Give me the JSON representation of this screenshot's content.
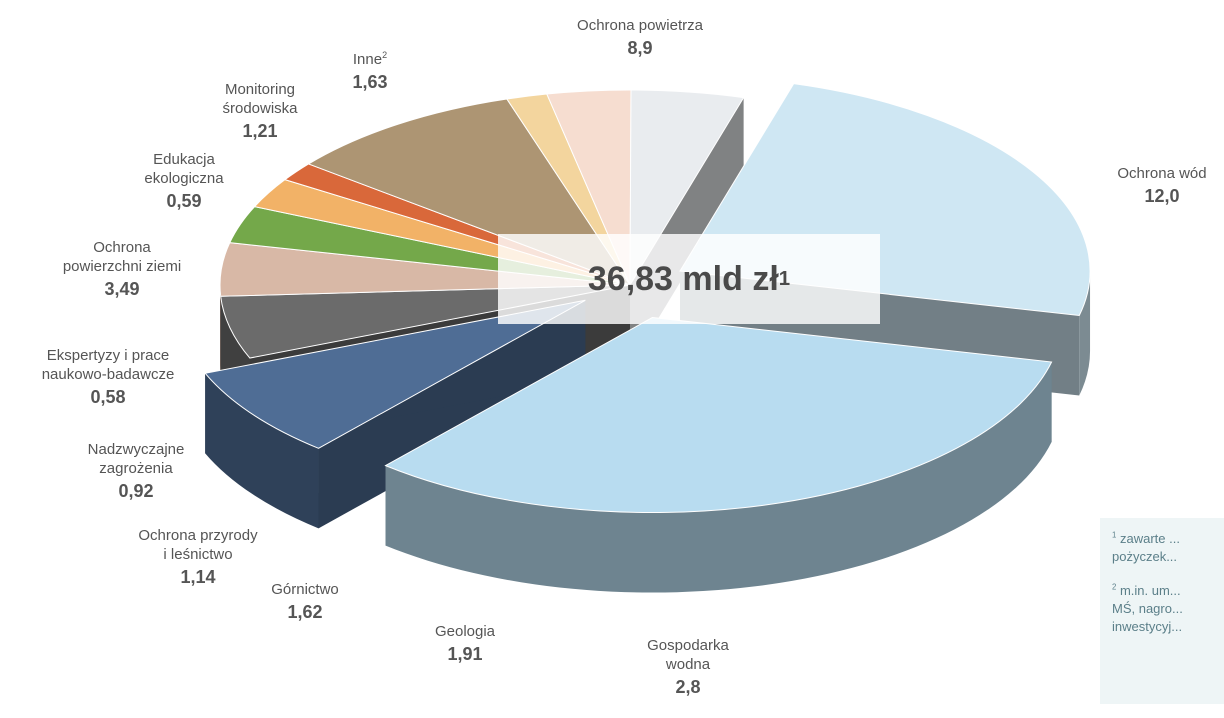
{
  "chart_data": {
    "type": "pie",
    "title": "",
    "total_value": "36,83",
    "total_unit": "mld zł",
    "total_sup": "1",
    "series": [
      {
        "key": "powietrza",
        "label": "Ochrona powietrza",
        "value": 8.9,
        "value_text": "8,9",
        "color": "#cfe7f3"
      },
      {
        "key": "wod",
        "label": "Ochrona wód",
        "value": 12.0,
        "value_text": "12,0",
        "color": "#b8dcf0"
      },
      {
        "key": "gospodarka",
        "label": "Gospodarka wodna",
        "value": 2.8,
        "value_text": "2,8",
        "color": "#4f6d95"
      },
      {
        "key": "geologia",
        "label": "Geologia",
        "value": 1.91,
        "value_text": "1,91",
        "color": "#6b6b6b"
      },
      {
        "key": "gornictwo",
        "label": "Górnictwo",
        "value": 1.62,
        "value_text": "1,62",
        "color": "#d8b8a6"
      },
      {
        "key": "przyrody",
        "label": "Ochrona przyrody i leśnictwo",
        "value": 1.14,
        "value_text": "1,14",
        "color": "#74a84a"
      },
      {
        "key": "zagrozenia",
        "label": "Nadzwyczajne zagrożenia",
        "value": 0.92,
        "value_text": "0,92",
        "color": "#f2b267"
      },
      {
        "key": "ekspertyzy",
        "label": "Ekspertyzy i prace naukowo-badawcze",
        "value": 0.58,
        "value_text": "0,58",
        "color": "#d9683a"
      },
      {
        "key": "ziemi",
        "label": "Ochrona powierzchni ziemi",
        "value": 3.49,
        "value_text": "3,49",
        "color": "#ad9573"
      },
      {
        "key": "edukacja",
        "label": "Edukacja ekologiczna",
        "value": 0.59,
        "value_text": "0,59",
        "color": "#f3d59e"
      },
      {
        "key": "monitoring",
        "label": "Monitoring środowiska",
        "value": 1.21,
        "value_text": "1,21",
        "color": "#f6ddd0"
      },
      {
        "key": "inne",
        "label": "Inne",
        "value": 1.63,
        "value_text": "1,63",
        "color": "#e9ecef"
      }
    ],
    "labels": {
      "powietrza": {
        "l1": "Ochrona powietrza",
        "l2": "",
        "l3": ""
      },
      "wod": {
        "l1": "Ochrona wód",
        "l2": "",
        "l3": ""
      },
      "gospodarka": {
        "l1": "Gospodarka",
        "l2": "wodna",
        "l3": ""
      },
      "geologia": {
        "l1": "Geologia",
        "l2": "",
        "l3": ""
      },
      "gornictwo": {
        "l1": "Górnictwo",
        "l2": "",
        "l3": ""
      },
      "przyrody": {
        "l1": "Ochrona przyrody",
        "l2": "i leśnictwo",
        "l3": ""
      },
      "zagrozenia": {
        "l1": "Nadzwyczajne",
        "l2": "zagrożenia",
        "l3": ""
      },
      "ekspertyzy": {
        "l1": "Ekspertyzy i prace",
        "l2": "naukowo-badawcze",
        "l3": ""
      },
      "ziemi": {
        "l1": "Ochrona",
        "l2": "powierzchni ziemi",
        "l3": ""
      },
      "edukacja": {
        "l1": "Edukacja",
        "l2": "ekologiczna",
        "l3": ""
      },
      "monitoring": {
        "l1": "Monitoring",
        "l2": "środowiska",
        "l3": ""
      },
      "inne": {
        "l1": "Inne",
        "l2": "",
        "l3": "2"
      }
    },
    "footnotes": {
      "n1_sup": "1",
      "n1_a": "zawarte ...",
      "n1_b": "pożyczek...",
      "n2_sup": "2",
      "n2_a": "m.in. um...",
      "n2_b": "MŚ, nagro...",
      "n2_c": "inwestycyj..."
    }
  }
}
